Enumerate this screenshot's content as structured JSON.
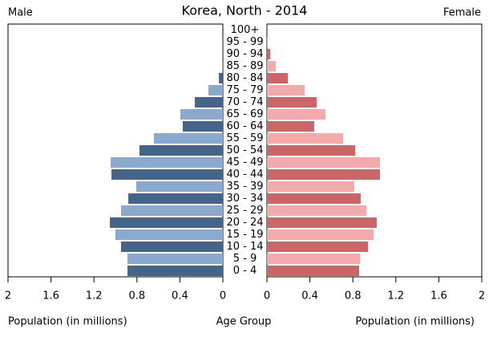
{
  "chart_data": {
    "type": "pyramid",
    "title": "Korea, North - 2014",
    "x_label": "Population (in millions)",
    "y_label": "Age Group",
    "categories": [
      "0 - 4",
      "5 - 9",
      "10 - 14",
      "15 - 19",
      "20 - 24",
      "25 - 29",
      "30 - 34",
      "35 - 39",
      "40 - 44",
      "45 - 49",
      "50 - 54",
      "55 - 59",
      "60 - 64",
      "65 - 69",
      "70 - 74",
      "75 - 79",
      "80 - 84",
      "85 - 89",
      "90 - 94",
      "95 - 99",
      "100+"
    ],
    "series": [
      {
        "name": "Male",
        "colors": [
          "#44648a",
          "#8aaacd"
        ],
        "values": [
          0.888,
          0.888,
          0.948,
          1.0,
          1.052,
          0.948,
          0.88,
          0.806,
          1.037,
          1.045,
          0.776,
          0.642,
          0.373,
          0.396,
          0.261,
          0.134,
          0.037,
          0.007,
          0.002,
          0.001,
          0
        ]
      },
      {
        "name": "Female",
        "colors": [
          "#cc6666",
          "#f2aaaa"
        ],
        "values": [
          0.858,
          0.866,
          0.94,
          0.993,
          1.022,
          0.925,
          0.873,
          0.813,
          1.052,
          1.052,
          0.821,
          0.709,
          0.44,
          0.545,
          0.463,
          0.351,
          0.194,
          0.082,
          0.03,
          0.007,
          0.001
        ]
      }
    ],
    "xlim": [
      0,
      2
    ],
    "xticks": [
      0,
      0.4,
      0.8,
      1.2,
      1.6,
      2
    ]
  }
}
